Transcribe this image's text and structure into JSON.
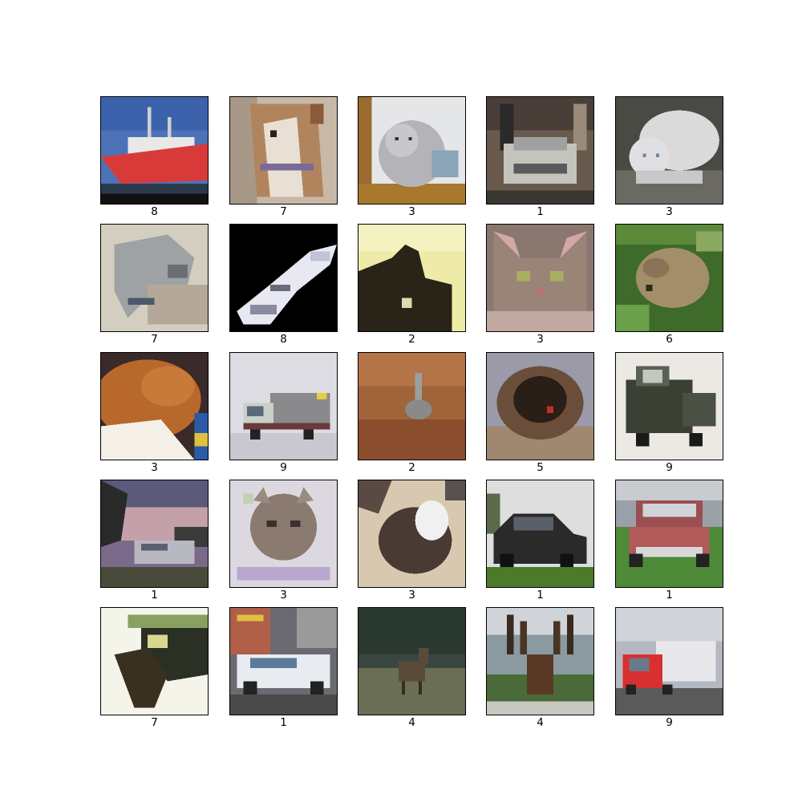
{
  "figure": {
    "background": "#ffffff",
    "grid": "5x5"
  },
  "images": [
    {
      "label": "8",
      "subject": "red ship at harbor",
      "palette": [
        "#4a6fb5",
        "#d8353a"
      ]
    },
    {
      "label": "7",
      "subject": "horse head close-up",
      "palette": [
        "#b08a66",
        "#7e6a92"
      ]
    },
    {
      "label": "3",
      "subject": "grey kitten in box",
      "palette": [
        "#c8c8cc",
        "#9a6a2e"
      ]
    },
    {
      "label": "1",
      "subject": "silver car front view",
      "palette": [
        "#8a7a6a",
        "#c8c8c0"
      ]
    },
    {
      "label": "3",
      "subject": "white cat lying",
      "palette": [
        "#d4d4d4",
        "#5a5a52"
      ]
    },
    {
      "label": "7",
      "subject": "horse statue profile",
      "palette": [
        "#c8c2b4",
        "#8a8e90"
      ]
    },
    {
      "label": "8",
      "subject": "white airplane on black",
      "palette": [
        "#000000",
        "#e6e6f0"
      ]
    },
    {
      "label": "2",
      "subject": "dark bird silhouette",
      "palette": [
        "#f0ecaa",
        "#2a2418"
      ]
    },
    {
      "label": "3",
      "subject": "tabby cat face",
      "palette": [
        "#8a7068",
        "#c0a0a0"
      ]
    },
    {
      "label": "6",
      "subject": "frog in leaves",
      "palette": [
        "#4a7a30",
        "#a89070"
      ]
    },
    {
      "label": "3",
      "subject": "orange cat sleeping",
      "palette": [
        "#b86a2a",
        "#f0f0f0"
      ]
    },
    {
      "label": "9",
      "subject": "grey semi truck",
      "palette": [
        "#dadae0",
        "#8a8a8a"
      ]
    },
    {
      "label": "2",
      "subject": "bird on brown ground",
      "palette": [
        "#a86a40",
        "#7a4a30"
      ]
    },
    {
      "label": "5",
      "subject": "fluffy dog face",
      "palette": [
        "#a08870",
        "#2a1e18"
      ]
    },
    {
      "label": "9",
      "subject": "old dark truck",
      "palette": [
        "#e8e4e0",
        "#3a4034"
      ]
    },
    {
      "label": "1",
      "subject": "white minivan at dusk",
      "palette": [
        "#6a5a7a",
        "#b0b0b8"
      ]
    },
    {
      "label": "3",
      "subject": "cat face on lace",
      "palette": [
        "#d8d0dc",
        "#7a6a60"
      ]
    },
    {
      "label": "3",
      "subject": "cat curled up",
      "palette": [
        "#d8c8b4",
        "#4a3a34"
      ]
    },
    {
      "label": "1",
      "subject": "black sedan on grass",
      "palette": [
        "#dcdcdc",
        "#2a2a2a"
      ]
    },
    {
      "label": "1",
      "subject": "red vintage truck",
      "palette": [
        "#5a8a40",
        "#b05a5a"
      ]
    },
    {
      "label": "7",
      "subject": "dark horse with rider",
      "palette": [
        "#f4f4e8",
        "#2a3024"
      ]
    },
    {
      "label": "1",
      "subject": "police car in street",
      "palette": [
        "#6a6a70",
        "#e8ecf0"
      ]
    },
    {
      "label": "4",
      "subject": "deer in field",
      "palette": [
        "#3e4a40",
        "#6a6a54"
      ]
    },
    {
      "label": "4",
      "subject": "deer with antlers",
      "palette": [
        "#8a9aa0",
        "#5a3a24"
      ]
    },
    {
      "label": "9",
      "subject": "red truck with trailer",
      "palette": [
        "#b0b4bc",
        "#d83030"
      ]
    }
  ]
}
